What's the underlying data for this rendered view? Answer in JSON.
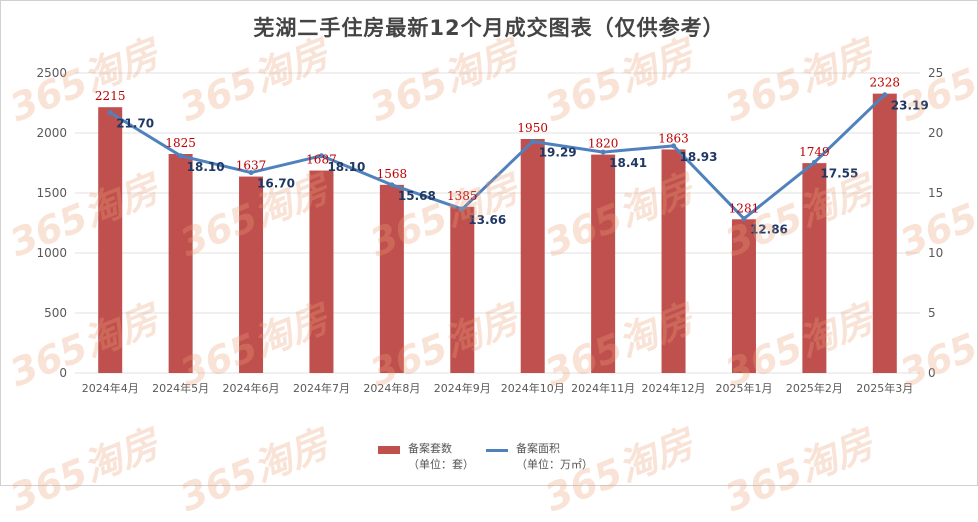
{
  "title": "芜湖二手住房最新12个月成交图表（仅供参考）",
  "watermark": "365淘房",
  "colors": {
    "bar": "#c0504d",
    "line": "#4f81bd",
    "bar_label": "#c00000",
    "line_label": "#1f3864",
    "grid": "#e0e0e0"
  },
  "legend": {
    "bar_name": "备案套数",
    "bar_unit": "（单位：套）",
    "line_name": "备案面积",
    "line_unit": "（单位：万㎡）"
  },
  "chart_data": {
    "type": "bar",
    "title": "芜湖二手住房最新12个月成交图表（仅供参考）",
    "categories": [
      "2024年4月",
      "2024年5月",
      "2024年6月",
      "2024年7月",
      "2024年8月",
      "2024年9月",
      "2024年10月",
      "2024年11月",
      "2024年12月",
      "2025年1月",
      "2025年2月",
      "2025年3月"
    ],
    "series": [
      {
        "name": "备案套数",
        "type": "bar",
        "axis": "left",
        "unit": "（单位：套）",
        "values": [
          2215,
          1825,
          1637,
          1687,
          1568,
          1385,
          1950,
          1820,
          1863,
          1281,
          1749,
          2328
        ]
      },
      {
        "name": "备案面积",
        "type": "line",
        "axis": "right",
        "unit": "（单位：万㎡）",
        "values": [
          21.7,
          18.1,
          16.7,
          18.1,
          15.68,
          13.66,
          19.29,
          18.41,
          18.93,
          12.86,
          17.55,
          23.19
        ]
      }
    ],
    "y_left": {
      "min": 0,
      "max": 2500,
      "ticks": [
        0,
        500,
        1000,
        1500,
        2000,
        2500
      ]
    },
    "y_right": {
      "min": 0,
      "max": 25,
      "ticks": [
        0,
        5,
        10,
        15,
        20,
        25
      ]
    },
    "grid": true,
    "legend_position": "bottom"
  }
}
